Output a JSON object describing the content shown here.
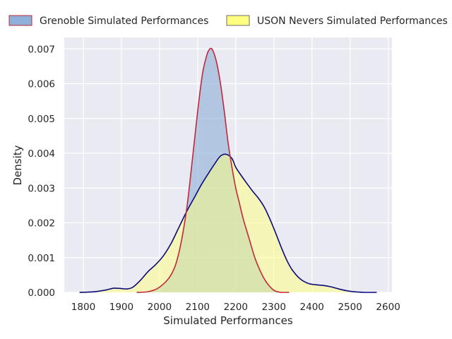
{
  "chart_data": {
    "type": "area",
    "xlabel": "Simulated Performances",
    "ylabel": "Density",
    "xlim": [
      1750,
      2610
    ],
    "ylim": [
      0,
      0.00733
    ],
    "x_ticks": [
      1800,
      1900,
      2000,
      2100,
      2200,
      2300,
      2400,
      2500,
      2600
    ],
    "x_tick_labels": [
      "1800",
      "1900",
      "2000",
      "2100",
      "2200",
      "2300",
      "2400",
      "2500",
      "2600"
    ],
    "y_ticks": [
      0,
      0.001,
      0.002,
      0.003,
      0.004,
      0.005,
      0.006,
      0.007
    ],
    "y_tick_labels": [
      "0.000",
      "0.001",
      "0.002",
      "0.003",
      "0.004",
      "0.005",
      "0.006",
      "0.007"
    ],
    "grid": true,
    "legend_position": "top",
    "series": [
      {
        "name": "Grenoble Simulated Performances",
        "fill": "#8fb0d8",
        "line": "#c0283a",
        "points": [
          [
            1940,
            0.0
          ],
          [
            1970,
            2e-05
          ],
          [
            2000,
            0.00015
          ],
          [
            2030,
            0.0005
          ],
          [
            2050,
            0.0011
          ],
          [
            2070,
            0.0023
          ],
          [
            2085,
            0.0037
          ],
          [
            2100,
            0.0052
          ],
          [
            2113,
            0.0063
          ],
          [
            2125,
            0.00685
          ],
          [
            2133,
            0.00701
          ],
          [
            2140,
            0.00695
          ],
          [
            2150,
            0.0066
          ],
          [
            2160,
            0.006
          ],
          [
            2170,
            0.0052
          ],
          [
            2180,
            0.0043
          ],
          [
            2190,
            0.0036
          ],
          [
            2200,
            0.003
          ],
          [
            2210,
            0.00255
          ],
          [
            2220,
            0.0021
          ],
          [
            2235,
            0.00155
          ],
          [
            2250,
            0.001
          ],
          [
            2265,
            0.0006
          ],
          [
            2280,
            0.0003
          ],
          [
            2300,
            6e-05
          ],
          [
            2320,
            0.0
          ],
          [
            2340,
            0.0
          ]
        ]
      },
      {
        "name": "USON Nevers Simulated Performances",
        "fill": "#ffff80",
        "line": "#0a0a78",
        "points": [
          [
            1790,
            0.0
          ],
          [
            1830,
            2e-05
          ],
          [
            1860,
            7e-05
          ],
          [
            1880,
            0.00012
          ],
          [
            1900,
            0.00011
          ],
          [
            1915,
            0.0001
          ],
          [
            1930,
            0.00015
          ],
          [
            1950,
            0.00035
          ],
          [
            1970,
            0.0006
          ],
          [
            1990,
            0.0008
          ],
          [
            2010,
            0.00105
          ],
          [
            2030,
            0.0014
          ],
          [
            2050,
            0.00185
          ],
          [
            2070,
            0.0023
          ],
          [
            2090,
            0.0027
          ],
          [
            2110,
            0.0031
          ],
          [
            2130,
            0.00345
          ],
          [
            2145,
            0.0037
          ],
          [
            2160,
            0.00392
          ],
          [
            2175,
            0.00397
          ],
          [
            2190,
            0.00385
          ],
          [
            2200,
            0.0036
          ],
          [
            2215,
            0.00335
          ],
          [
            2230,
            0.00312
          ],
          [
            2245,
            0.0029
          ],
          [
            2260,
            0.0027
          ],
          [
            2275,
            0.00245
          ],
          [
            2290,
            0.0021
          ],
          [
            2305,
            0.0017
          ],
          [
            2320,
            0.00128
          ],
          [
            2335,
            0.0009
          ],
          [
            2350,
            0.00062
          ],
          [
            2370,
            0.00038
          ],
          [
            2390,
            0.00026
          ],
          [
            2410,
            0.00022
          ],
          [
            2430,
            0.0002
          ],
          [
            2450,
            0.00016
          ],
          [
            2470,
            0.0001
          ],
          [
            2490,
            5e-05
          ],
          [
            2510,
            2e-05
          ],
          [
            2540,
            0.0
          ],
          [
            2570,
            0.0
          ]
        ]
      }
    ],
    "colors": {
      "plot_background": "#eaeaf2",
      "grid": "#ffffff",
      "text": "#262626",
      "overlap_fill": "#b3c9a8"
    }
  }
}
